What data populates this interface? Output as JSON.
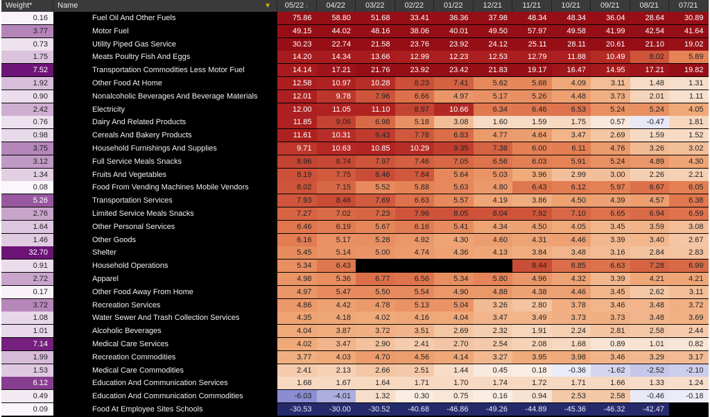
{
  "headers": {
    "weight": "Weight*",
    "name": "Name",
    "months": [
      "05/22",
      "04/22",
      "03/22",
      "02/22",
      "01/22",
      "12/21",
      "11/21",
      "10/21",
      "09/21",
      "08/21",
      "07/21"
    ]
  },
  "rows": [
    {
      "weight": "0.16",
      "name": "Fuel Oil And Other Fuels",
      "values": [
        "75.86",
        "58.80",
        "51.68",
        "33.41",
        "36.36",
        "37.98",
        "48.34",
        "48.34",
        "36.04",
        "28.64",
        "30.89"
      ]
    },
    {
      "weight": "3.77",
      "name": "Motor Fuel",
      "values": [
        "49.15",
        "44.02",
        "48.16",
        "38.06",
        "40.01",
        "49.50",
        "57.97",
        "49.58",
        "41.99",
        "42.54",
        "41.64"
      ]
    },
    {
      "weight": "0.73",
      "name": "Utility Piped Gas Service",
      "values": [
        "30.23",
        "22.74",
        "21.58",
        "23.76",
        "23.92",
        "24.12",
        "25.11",
        "28.11",
        "20.61",
        "21.10",
        "19.02"
      ]
    },
    {
      "weight": "1.75",
      "name": "Meats Poultry Fish And Eggs",
      "values": [
        "14.20",
        "14.34",
        "13.66",
        "12.99",
        "12.23",
        "12.53",
        "12.79",
        "11.88",
        "10.49",
        "8.02",
        "5.89"
      ]
    },
    {
      "weight": "7.52",
      "name": "Transportation Commodities Less Motor Fuel",
      "values": [
        "14.14",
        "17.21",
        "21.76",
        "23.92",
        "23.42",
        "21.83",
        "19.17",
        "16.47",
        "14.95",
        "17.21",
        "19.82"
      ]
    },
    {
      "weight": "1.92",
      "name": "Other Food At Home",
      "values": [
        "12.58",
        "10.97",
        "10.28",
        "8.23",
        "7.41",
        "5.62",
        "5.68",
        "4.09",
        "3.11",
        "1.48",
        "1.31"
      ]
    },
    {
      "weight": "0.90",
      "name": "Nonalcoholic Beverages And Beverage Materials",
      "values": [
        "12.01",
        "9.78",
        "7.96",
        "6.66",
        "4.97",
        "5.17",
        "5.26",
        "4.48",
        "3.73",
        "2.01",
        "1.11"
      ]
    },
    {
      "weight": "2.42",
      "name": "Electricity",
      "values": [
        "12.00",
        "11.05",
        "11.10",
        "8.97",
        "10.66",
        "6.34",
        "6.46",
        "6.53",
        "5.24",
        "5.24",
        "4.05"
      ]
    },
    {
      "weight": "0.76",
      "name": "Dairy And Related Products",
      "values": [
        "11.85",
        "9.06",
        "6.98",
        "5.18",
        "3.08",
        "1.60",
        "1.59",
        "1.75",
        "0.57",
        "-0.47",
        "1.81"
      ]
    },
    {
      "weight": "0.98",
      "name": "Cereals And Bakery Products",
      "values": [
        "11.61",
        "10.31",
        "9.43",
        "7.78",
        "6.83",
        "4.77",
        "4.64",
        "3.47",
        "2.69",
        "1.59",
        "1.52"
      ]
    },
    {
      "weight": "3.75",
      "name": "Household Furnishings And Supplies",
      "values": [
        "9.71",
        "10.63",
        "10.85",
        "10.29",
        "9.35",
        "7.38",
        "6.00",
        "6.11",
        "4.76",
        "3.26",
        "3.02"
      ]
    },
    {
      "weight": "3.12",
      "name": "Full Service Meals  Snacks",
      "values": [
        "8.96",
        "8.74",
        "7.97",
        "7.46",
        "7.05",
        "6.56",
        "6.03",
        "5.91",
        "5.24",
        "4.89",
        "4.30"
      ]
    },
    {
      "weight": "1.34",
      "name": "Fruits And Vegetables",
      "values": [
        "8.19",
        "7.75",
        "8.46",
        "7.84",
        "5.64",
        "5.03",
        "3.96",
        "2.99",
        "3.00",
        "2.26",
        "2.21"
      ]
    },
    {
      "weight": "0.08",
      "name": "Food From Vending Machines  Mobile Vendors",
      "values": [
        "8.02",
        "7.15",
        "5.52",
        "5.88",
        "5.63",
        "4.80",
        "6.43",
        "6.12",
        "5.97",
        "6.67",
        "6.05"
      ]
    },
    {
      "weight": "5.26",
      "name": "Transportation Services",
      "values": [
        "7.93",
        "8.46",
        "7.69",
        "6.63",
        "5.57",
        "4.19",
        "3.86",
        "4.50",
        "4.39",
        "4.57",
        "6.38"
      ]
    },
    {
      "weight": "2.76",
      "name": "Limited Service Meals  Snacks",
      "values": [
        "7.27",
        "7.02",
        "7.23",
        "7.96",
        "8.05",
        "8.04",
        "7.92",
        "7.10",
        "6.65",
        "6.94",
        "6.59"
      ]
    },
    {
      "weight": "1.64",
      "name": "Other Personal Services",
      "values": [
        "6.46",
        "6.19",
        "5.67",
        "6.16",
        "5.41",
        "4.34",
        "4.50",
        "4.05",
        "3.45",
        "3.59",
        "3.08"
      ]
    },
    {
      "weight": "1.46",
      "name": "Other Goods",
      "values": [
        "6.16",
        "5.17",
        "5.28",
        "4.92",
        "4.30",
        "4.60",
        "4.31",
        "4.46",
        "3.39",
        "3.40",
        "2.67"
      ]
    },
    {
      "weight": "32.70",
      "name": "Shelter",
      "values": [
        "5.45",
        "5.14",
        "5.00",
        "4.74",
        "4.36",
        "4.13",
        "3.84",
        "3.48",
        "3.16",
        "2.84",
        "2.83"
      ]
    },
    {
      "weight": "0.91",
      "name": "Household Operations",
      "values": [
        "5.34",
        "6.43",
        "",
        "",
        "",
        "",
        "8.44",
        "6.85",
        "6.63",
        "7.28",
        "6.99"
      ]
    },
    {
      "weight": "2.72",
      "name": "Apparel",
      "values": [
        "4.98",
        "5.36",
        "6.77",
        "6.56",
        "5.34",
        "5.80",
        "4.96",
        "4.32",
        "3.39",
        "4.21",
        "4.21"
      ]
    },
    {
      "weight": "0.17",
      "name": "Other Food Away From Home",
      "values": [
        "4.97",
        "5.47",
        "5.50",
        "5.54",
        "4.90",
        "4.88",
        "4.38",
        "4.46",
        "3.45",
        "2.62",
        "3.11"
      ]
    },
    {
      "weight": "3.72",
      "name": "Recreation Services",
      "values": [
        "4.86",
        "4.42",
        "4.78",
        "5.13",
        "5.04",
        "3.26",
        "2.80",
        "3.78",
        "3.46",
        "3.48",
        "3.72"
      ]
    },
    {
      "weight": "1.08",
      "name": "Water Sewer And Trash Collection Services",
      "values": [
        "4.35",
        "4.18",
        "4.02",
        "4.16",
        "4.04",
        "3.47",
        "3.49",
        "3.73",
        "3.73",
        "3.48",
        "3.69"
      ]
    },
    {
      "weight": "1.01",
      "name": "Alcoholic Beverages",
      "values": [
        "4.04",
        "3.87",
        "3.72",
        "3.51",
        "2.69",
        "2.32",
        "1.91",
        "2.24",
        "2.81",
        "2.58",
        "2.44"
      ]
    },
    {
      "weight": "7.14",
      "name": "Medical Care Services",
      "values": [
        "4.02",
        "3.47",
        "2.90",
        "2.41",
        "2.70",
        "2.54",
        "2.08",
        "1.68",
        "0.89",
        "1.01",
        "0.82"
      ]
    },
    {
      "weight": "1.99",
      "name": "Recreation Commodities",
      "values": [
        "3.77",
        "4.03",
        "4.70",
        "4.56",
        "4.14",
        "3.27",
        "3.95",
        "3.98",
        "3.46",
        "3.29",
        "3.17"
      ]
    },
    {
      "weight": "1.53",
      "name": "Medical Care Commodities",
      "values": [
        "2.41",
        "2.13",
        "2.66",
        "2.51",
        "1.44",
        "0.45",
        "0.18",
        "-0.36",
        "-1.62",
        "-2.52",
        "-2.10"
      ]
    },
    {
      "weight": "6.12",
      "name": "Education And Communication Services",
      "values": [
        "1.68",
        "1.67",
        "1.64",
        "1.71",
        "1.70",
        "1.74",
        "1.72",
        "1.71",
        "1.66",
        "1.33",
        "1.24"
      ]
    },
    {
      "weight": "0.49",
      "name": "Education And Communication Commodities",
      "values": [
        "-6.03",
        "-4.01",
        "1.32",
        "0.30",
        "0.75",
        "0.16",
        "0.94",
        "2.53",
        "2.58",
        "-0.46",
        "-0.18"
      ]
    },
    {
      "weight": "0.09",
      "name": "Food At Employee Sites  Schools",
      "values": [
        "-30.53",
        "-30.00",
        "-30.52",
        "-40.68",
        "-46.86",
        "-49.26",
        "-44.89",
        "-45.36",
        "-46.32",
        "-42.47",
        ""
      ]
    }
  ]
}
